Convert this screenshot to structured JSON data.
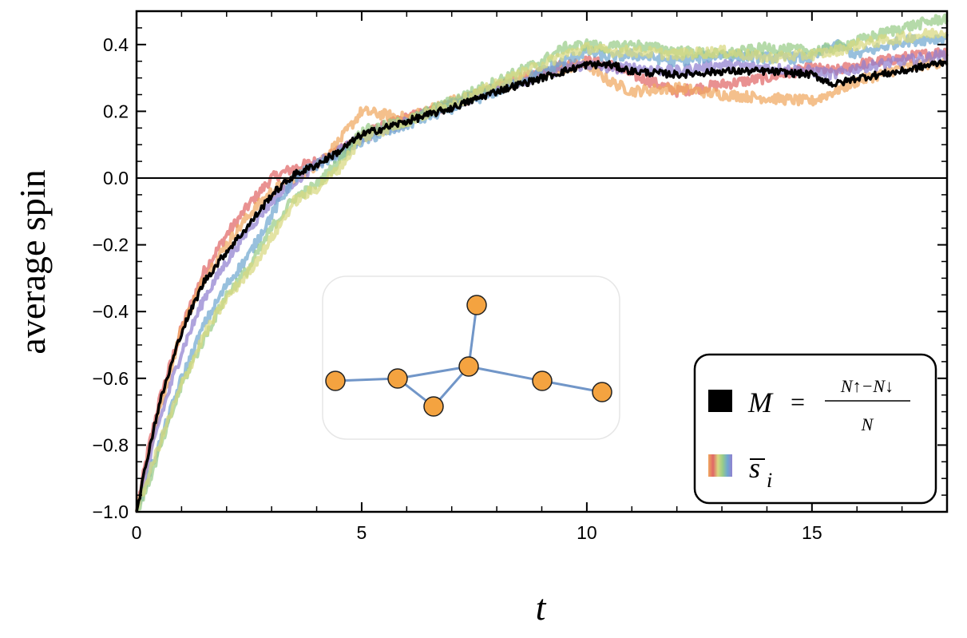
{
  "chart_data": {
    "type": "line",
    "title": "",
    "xlabel": "t",
    "ylabel": "average spin",
    "xlim": [
      0,
      18
    ],
    "ylim": [
      -1.0,
      0.5
    ],
    "xticks": [
      0,
      5,
      10,
      15
    ],
    "xtick_labels": [
      "0",
      "5",
      "10",
      "15"
    ],
    "yticks": [
      -1.0,
      -0.8,
      -0.6,
      -0.4,
      -0.2,
      0.0,
      0.2,
      0.4
    ],
    "ytick_labels": [
      "−1.0",
      "−0.8",
      "−0.6",
      "−0.4",
      "−0.2",
      "0.0",
      "0.2",
      "0.4"
    ],
    "reference_line": {
      "y": 0.0,
      "color": "#000000"
    },
    "grid": false,
    "legend": {
      "position": "bottom-right",
      "entries": [
        {
          "swatch": "black",
          "label_symbol": "M",
          "label_eq": "=",
          "label_numerator": "N↑−N↓",
          "label_denominator": "N"
        },
        {
          "swatch": "rainbow",
          "label_symbol": "s",
          "label_subscript": "i"
        }
      ]
    },
    "series": [
      {
        "name": "M",
        "color": "#000000",
        "x": [
          0,
          0.25,
          0.5,
          1,
          1.5,
          2,
          2.5,
          3,
          3.5,
          4,
          4.5,
          5,
          6,
          7,
          8,
          9,
          9.5,
          10,
          10.5,
          11,
          12,
          13,
          14,
          15,
          15.5,
          16,
          17,
          18
        ],
        "values": [
          -1.0,
          -0.83,
          -0.68,
          -0.46,
          -0.31,
          -0.22,
          -0.14,
          -0.05,
          0.01,
          0.04,
          0.08,
          0.13,
          0.17,
          0.21,
          0.26,
          0.3,
          0.32,
          0.34,
          0.34,
          0.32,
          0.31,
          0.32,
          0.32,
          0.31,
          0.28,
          0.3,
          0.32,
          0.35
        ]
      },
      {
        "name": "s_i (red)",
        "color": "#e06666",
        "x": [
          0,
          0.25,
          0.5,
          1,
          1.5,
          2,
          2.5,
          3,
          3.5,
          4,
          4.5,
          5,
          6,
          7,
          8,
          9,
          9.5,
          10,
          10.5,
          11,
          12,
          13,
          14,
          15,
          15.5,
          16,
          17,
          18
        ],
        "values": [
          -1.0,
          -0.82,
          -0.67,
          -0.45,
          -0.28,
          -0.17,
          -0.08,
          0.0,
          0.03,
          0.05,
          0.08,
          0.13,
          0.18,
          0.22,
          0.27,
          0.32,
          0.34,
          0.35,
          0.34,
          0.31,
          0.26,
          0.28,
          0.3,
          0.33,
          0.32,
          0.34,
          0.36,
          0.38
        ]
      },
      {
        "name": "s_i (orange)",
        "color": "#f0a860",
        "x": [
          0,
          0.25,
          0.5,
          1,
          1.5,
          2,
          2.5,
          3,
          3.5,
          4,
          4.5,
          5,
          6,
          7,
          8,
          9,
          9.5,
          10,
          10.5,
          11,
          12,
          13,
          14,
          15,
          15.5,
          16,
          17,
          18
        ],
        "values": [
          -1.0,
          -0.84,
          -0.7,
          -0.45,
          -0.3,
          -0.2,
          -0.11,
          -0.04,
          0.0,
          0.04,
          0.11,
          0.2,
          0.18,
          0.23,
          0.27,
          0.31,
          0.33,
          0.34,
          0.29,
          0.26,
          0.27,
          0.25,
          0.24,
          0.23,
          0.26,
          0.29,
          0.33,
          0.35
        ]
      },
      {
        "name": "s_i (purple)",
        "color": "#9080d0",
        "x": [
          0,
          0.25,
          0.5,
          1,
          1.5,
          2,
          2.5,
          3,
          3.5,
          4,
          4.5,
          5,
          6,
          7,
          8,
          9,
          9.5,
          10,
          10.5,
          11,
          12,
          13,
          14,
          15,
          15.5,
          16,
          17,
          18
        ],
        "values": [
          -1.0,
          -0.87,
          -0.73,
          -0.52,
          -0.36,
          -0.25,
          -0.15,
          -0.07,
          -0.01,
          0.04,
          0.08,
          0.12,
          0.17,
          0.22,
          0.27,
          0.31,
          0.33,
          0.34,
          0.33,
          0.33,
          0.32,
          0.34,
          0.33,
          0.32,
          0.31,
          0.33,
          0.35,
          0.37
        ]
      },
      {
        "name": "s_i (blue)",
        "color": "#70a8d0",
        "x": [
          0,
          0.25,
          0.5,
          1,
          1.5,
          2,
          2.5,
          3,
          3.5,
          4,
          4.5,
          5,
          6,
          7,
          8,
          9,
          9.5,
          10,
          10.5,
          11,
          12,
          13,
          14,
          15,
          15.5,
          16,
          17,
          18
        ],
        "values": [
          -1.0,
          -0.9,
          -0.8,
          -0.6,
          -0.44,
          -0.32,
          -0.23,
          -0.11,
          0.0,
          0.04,
          0.07,
          0.11,
          0.16,
          0.21,
          0.26,
          0.32,
          0.35,
          0.38,
          0.36,
          0.37,
          0.35,
          0.37,
          0.36,
          0.36,
          0.4,
          0.37,
          0.41,
          0.42
        ]
      },
      {
        "name": "s_i (green)",
        "color": "#98cc88",
        "x": [
          0,
          0.25,
          0.5,
          1,
          1.5,
          2,
          2.5,
          3,
          3.5,
          4,
          4.5,
          5,
          6,
          7,
          8,
          9,
          9.5,
          10,
          10.5,
          11,
          12,
          13,
          14,
          15,
          15.5,
          16,
          17,
          18
        ],
        "values": [
          -1.0,
          -0.92,
          -0.82,
          -0.62,
          -0.48,
          -0.35,
          -0.27,
          -0.15,
          -0.06,
          -0.02,
          0.05,
          0.14,
          0.17,
          0.23,
          0.29,
          0.35,
          0.39,
          0.4,
          0.39,
          0.4,
          0.38,
          0.37,
          0.39,
          0.38,
          0.39,
          0.41,
          0.45,
          0.48
        ]
      },
      {
        "name": "s_i (yellow-green)",
        "color": "#d8d880",
        "x": [
          0,
          0.25,
          0.5,
          1,
          1.5,
          2,
          2.5,
          3,
          3.5,
          4,
          4.5,
          5,
          6,
          7,
          8,
          9,
          9.5,
          10,
          10.5,
          11,
          12,
          13,
          14,
          15,
          15.5,
          16,
          17,
          18
        ],
        "values": [
          -1.0,
          -0.9,
          -0.8,
          -0.62,
          -0.47,
          -0.36,
          -0.28,
          -0.18,
          -0.07,
          -0.03,
          0.03,
          0.12,
          0.17,
          0.22,
          0.28,
          0.34,
          0.37,
          0.39,
          0.38,
          0.38,
          0.37,
          0.38,
          0.36,
          0.37,
          0.38,
          0.4,
          0.42,
          0.44
        ]
      }
    ],
    "inset_graph": {
      "nodes": [
        "n1",
        "n2",
        "n3",
        "n4",
        "n5",
        "n6",
        "n7"
      ],
      "edges": [
        [
          "n1",
          "n2"
        ],
        [
          "n2",
          "n4"
        ],
        [
          "n2",
          "n3"
        ],
        [
          "n3",
          "n4"
        ],
        [
          "n4",
          "n5"
        ],
        [
          "n4",
          "n6"
        ],
        [
          "n6",
          "n7"
        ]
      ],
      "node_color": "#f4a340",
      "edge_color": "#7196c8"
    }
  }
}
